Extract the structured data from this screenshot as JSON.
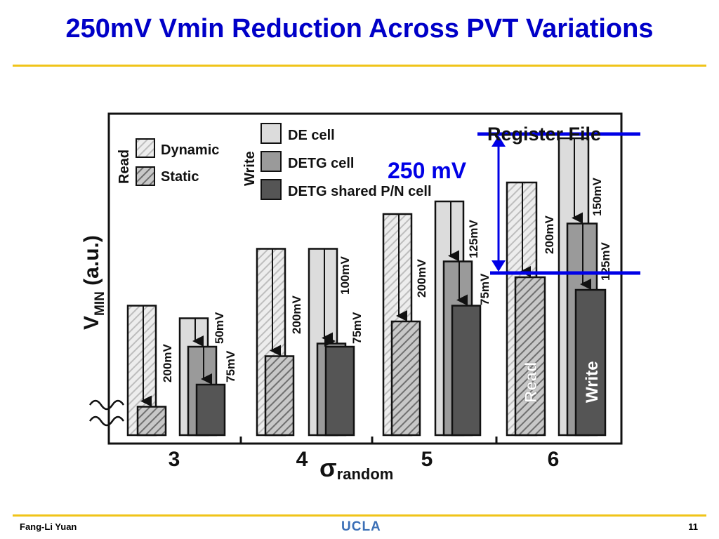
{
  "slide": {
    "title": "250mV Vmin Reduction Across PVT Variations",
    "footer_author": "Fang-Li Yuan",
    "footer_logo": "UCLA",
    "page_number": "11"
  },
  "colors": {
    "title": "#0000c8",
    "accent_rule": "#f0c419",
    "annotation": "#0000e6",
    "de_cell": "#dcdcdc",
    "detg_cell": "#9a9a9a",
    "detg_shared_cell": "#555555"
  },
  "chart_data": {
    "type": "bar",
    "title": "Register File",
    "ylabel": "V",
    "ylabel_sub": "MIN",
    "ylabel_unit": " (a.u.)",
    "xlabel": "σ",
    "xlabel_sub": "random",
    "categories": [
      "3",
      "4",
      "5",
      "6"
    ],
    "ylim": [
      0,
      100
    ],
    "legend": {
      "read_title": "Read",
      "write_title": "Write",
      "read_items": [
        "Dynamic",
        "Static"
      ],
      "write_items": [
        "DE cell",
        "DETG cell",
        "DETG shared P/N cell"
      ]
    },
    "series": [
      {
        "name": "Dynamic",
        "group": "read",
        "values": [
          41,
          59,
          70,
          80
        ]
      },
      {
        "name": "Static",
        "group": "read",
        "values": [
          9,
          25,
          36,
          50
        ]
      },
      {
        "name": "DE cell",
        "group": "write",
        "values": [
          37,
          59,
          74,
          94
        ]
      },
      {
        "name": "DETG cell",
        "group": "write",
        "values": [
          28,
          29,
          55,
          67
        ]
      },
      {
        "name": "DETG shared P/N cell",
        "group": "write",
        "values": [
          16,
          28,
          41,
          46
        ]
      }
    ],
    "annotations": {
      "read_dynamic_to_static": [
        "200mV",
        "200mV",
        "200mV",
        "200mV"
      ],
      "write_de_to_detg": [
        "50mV",
        "100mV",
        "125mV",
        "150mV"
      ],
      "write_detg_to_shared": [
        "75mV",
        "75mV",
        "75mV",
        "125mV"
      ]
    },
    "bar_labels": {
      "read": "Read",
      "write": "Write"
    },
    "reduction_label": "250 mV"
  }
}
